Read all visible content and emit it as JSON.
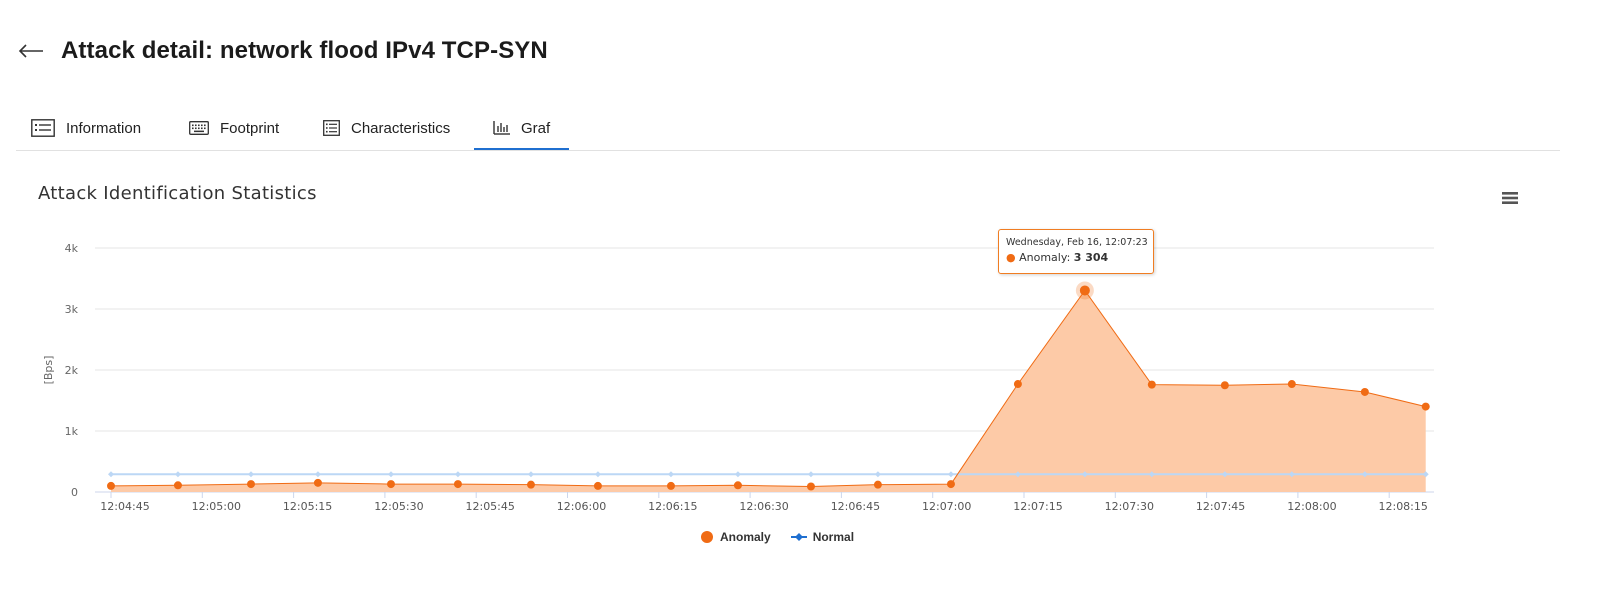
{
  "header": {
    "back_icon": "arrow-left-icon",
    "title": "Attack detail: network flood IPv4 TCP-SYN"
  },
  "tabs": [
    {
      "label": "Information",
      "icon": "list-icon",
      "active": false
    },
    {
      "label": "Footprint",
      "icon": "keyboard-icon",
      "active": false
    },
    {
      "label": "Characteristics",
      "icon": "list-detail-icon",
      "active": false
    },
    {
      "label": "Graf",
      "icon": "bar-chart-icon",
      "active": true
    }
  ],
  "colors": {
    "accent": "#1f6fd0",
    "anomaly": "#f06b14",
    "anomaly_fill": "#fdcaa7",
    "normal": "#1f6fd0",
    "normal_line": "#bcd7f5"
  },
  "chart_menu_icon": "hamburger-menu-icon",
  "tooltip": {
    "date": "Wednesday, Feb 16, 12:07:23",
    "series": "Anomaly",
    "value": "3 304"
  },
  "chart_data": {
    "type": "area",
    "title": "Attack Identification Statistics",
    "ylabel": "[Bps]",
    "xlabel": "",
    "ylim": [
      0,
      4000
    ],
    "yticks": [
      0,
      1000,
      2000,
      3000,
      4000
    ],
    "ytick_labels": [
      "0",
      "1k",
      "2k",
      "3k",
      "4k"
    ],
    "xticks": [
      "12:04:45",
      "12:05:00",
      "12:05:15",
      "12:05:30",
      "12:05:45",
      "12:06:00",
      "12:06:15",
      "12:06:30",
      "12:06:45",
      "12:07:00",
      "12:07:15",
      "12:07:30",
      "12:07:45",
      "12:08:00",
      "12:08:15"
    ],
    "grid": true,
    "legend_position": "bottom-center",
    "series": [
      {
        "name": "Anomaly",
        "color": "#f06b14",
        "points": [
          [
            "12:04:45",
            100
          ],
          [
            "12:04:56",
            110
          ],
          [
            "12:05:08",
            130
          ],
          [
            "12:05:19",
            150
          ],
          [
            "12:05:31",
            130
          ],
          [
            "12:05:42",
            130
          ],
          [
            "12:05:54",
            120
          ],
          [
            "12:06:05",
            100
          ],
          [
            "12:06:17",
            100
          ],
          [
            "12:06:28",
            110
          ],
          [
            "12:06:40",
            90
          ],
          [
            "12:06:51",
            120
          ],
          [
            "12:07:03",
            130
          ],
          [
            "12:07:14",
            1770
          ],
          [
            "12:07:25",
            3304
          ],
          [
            "12:07:36",
            1760
          ],
          [
            "12:07:48",
            1750
          ],
          [
            "12:07:59",
            1770
          ],
          [
            "12:08:11",
            1640
          ],
          [
            "12:08:21",
            1400
          ]
        ]
      },
      {
        "name": "Normal",
        "color": "#1f6fd0",
        "points": [
          [
            "12:04:45",
            290
          ],
          [
            "12:04:56",
            290
          ],
          [
            "12:05:08",
            290
          ],
          [
            "12:05:19",
            290
          ],
          [
            "12:05:31",
            290
          ],
          [
            "12:05:42",
            290
          ],
          [
            "12:05:54",
            290
          ],
          [
            "12:06:05",
            290
          ],
          [
            "12:06:17",
            290
          ],
          [
            "12:06:28",
            290
          ],
          [
            "12:06:40",
            290
          ],
          [
            "12:06:51",
            290
          ],
          [
            "12:07:03",
            290
          ],
          [
            "12:07:14",
            290
          ],
          [
            "12:07:25",
            290
          ],
          [
            "12:07:36",
            290
          ],
          [
            "12:07:48",
            290
          ],
          [
            "12:07:59",
            290
          ],
          [
            "12:08:11",
            290
          ],
          [
            "12:08:21",
            290
          ]
        ]
      }
    ]
  }
}
